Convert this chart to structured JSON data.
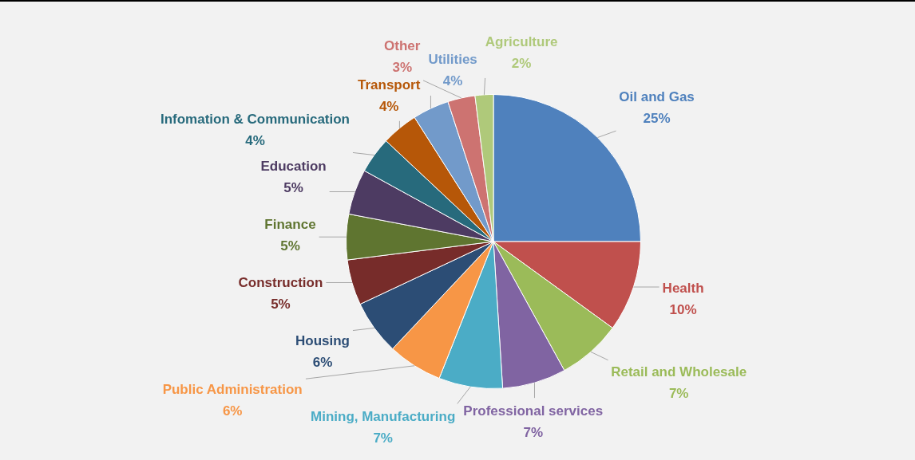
{
  "chart_data": {
    "type": "pie",
    "categories": [
      "Oil and Gas",
      "Health",
      "Retail and Wholesale",
      "Professional services",
      "Mining, Manufacturing",
      "Public Administration",
      "Housing",
      "Construction",
      "Finance",
      "Education",
      "Infomation & Communication",
      "Transport",
      "Utilities",
      "Other",
      "Agriculture"
    ],
    "values": [
      25,
      10,
      7,
      7,
      7,
      6,
      6,
      5,
      5,
      5,
      4,
      4,
      4,
      3,
      2
    ],
    "value_labels": [
      "25%",
      "10%",
      "7%",
      "7%",
      "7%",
      "6%",
      "6%",
      "5%",
      "5%",
      "5%",
      "4%",
      "4%",
      "4%",
      "3%",
      "2%"
    ],
    "colors": [
      "#4f81bd",
      "#c0504d",
      "#9bbb59",
      "#8064a2",
      "#4bacc6",
      "#f79646",
      "#2c4d75",
      "#772c2a",
      "#5f7530",
      "#4d3b62",
      "#276a7c",
      "#b65708",
      "#729aca",
      "#cd7371",
      "#afc97a"
    ],
    "legend": false
  }
}
